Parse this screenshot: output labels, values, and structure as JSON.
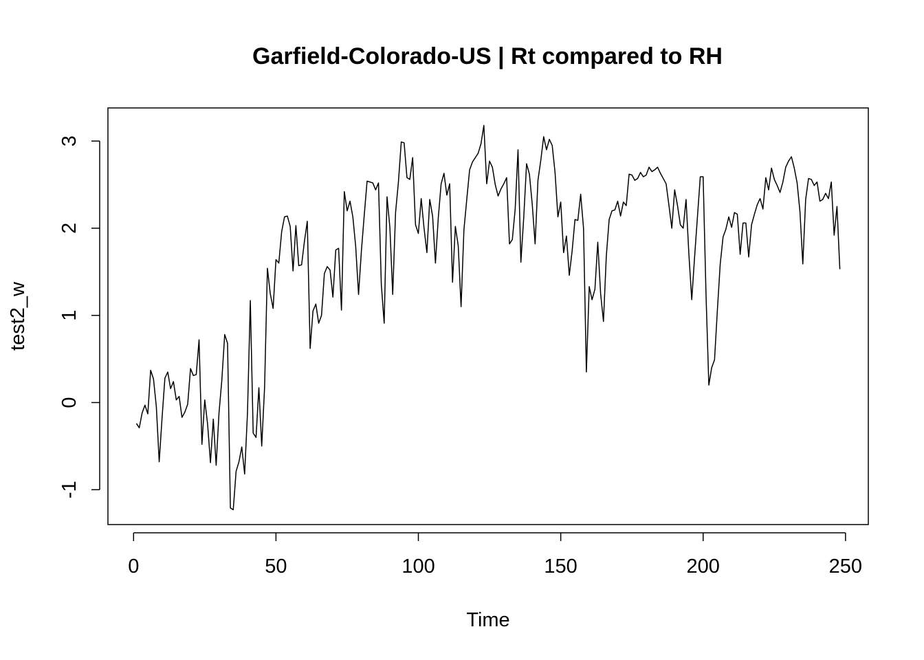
{
  "chart_data": {
    "type": "line",
    "title": "Garfield-Colorado-US | Rt compared to RH",
    "xlabel": "Time",
    "ylabel": "test2_w",
    "xlim": [
      -9,
      258
    ],
    "ylim": [
      -1.4,
      3.38
    ],
    "x_ticks": [
      0,
      50,
      100,
      150,
      200,
      250
    ],
    "x_tick_labels": [
      "0",
      "50",
      "100",
      "150",
      "200",
      "250"
    ],
    "y_ticks": [
      -1,
      0,
      1,
      2,
      3
    ],
    "y_tick_labels": [
      "-1",
      "0",
      "1",
      "2",
      "3"
    ],
    "grid": false,
    "legend": "none",
    "line_color": "#000000",
    "series": [
      {
        "x_start": 1,
        "values": [
          -0.24,
          -0.29,
          -0.12,
          -0.03,
          -0.13,
          0.37,
          0.27,
          -0.05,
          -0.68,
          -0.18,
          0.28,
          0.35,
          0.16,
          0.24,
          0.03,
          0.07,
          -0.17,
          -0.11,
          -0.02,
          0.39,
          0.31,
          0.32,
          0.72,
          -0.48,
          0.03,
          -0.25,
          -0.69,
          -0.19,
          -0.72,
          -0.12,
          0.26,
          0.78,
          0.68,
          -1.21,
          -1.23,
          -0.79,
          -0.68,
          -0.51,
          -0.82,
          -0.12,
          1.17,
          -0.35,
          -0.4,
          0.17,
          -0.5,
          0.17,
          1.54,
          1.25,
          1.08,
          1.64,
          1.6,
          1.96,
          2.13,
          2.14,
          2.02,
          1.51,
          2.03,
          1.57,
          1.58,
          1.85,
          2.08,
          0.62,
          1.05,
          1.13,
          0.91,
          1.0,
          1.48,
          1.56,
          1.52,
          1.21,
          1.75,
          1.77,
          1.06,
          2.42,
          2.2,
          2.31,
          2.13,
          1.79,
          1.24,
          1.74,
          2.15,
          2.54,
          2.53,
          2.52,
          2.44,
          2.52,
          1.35,
          0.91,
          2.36,
          2.01,
          1.24,
          2.18,
          2.53,
          2.99,
          2.98,
          2.58,
          2.56,
          2.81,
          2.04,
          1.94,
          2.34,
          2.0,
          1.72,
          2.33,
          2.14,
          1.6,
          2.12,
          2.51,
          2.63,
          2.38,
          2.51,
          1.38,
          2.02,
          1.8,
          1.1,
          1.98,
          2.33,
          2.67,
          2.76,
          2.81,
          2.86,
          2.97,
          3.18,
          2.51,
          2.77,
          2.7,
          2.5,
          2.37,
          2.45,
          2.51,
          2.58,
          1.82,
          1.87,
          2.22,
          2.9,
          1.61,
          2.12,
          2.74,
          2.62,
          2.27,
          1.82,
          2.55,
          2.78,
          3.05,
          2.9,
          3.02,
          2.95,
          2.64,
          2.13,
          2.3,
          1.72,
          1.91,
          1.46,
          1.74,
          2.1,
          2.09,
          2.39,
          2.0,
          0.35,
          1.33,
          1.18,
          1.3,
          1.84,
          1.25,
          0.93,
          1.68,
          2.1,
          2.2,
          2.21,
          2.31,
          2.14,
          2.3,
          2.26,
          2.62,
          2.61,
          2.55,
          2.57,
          2.64,
          2.59,
          2.61,
          2.7,
          2.65,
          2.67,
          2.7,
          2.63,
          2.57,
          2.51,
          2.26,
          2.0,
          2.44,
          2.26,
          2.04,
          2.0,
          2.33,
          1.7,
          1.18,
          1.67,
          2.13,
          2.59,
          2.59,
          1.25,
          0.2,
          0.4,
          0.49,
          1.06,
          1.59,
          1.9,
          1.99,
          2.13,
          2.01,
          2.18,
          2.16,
          1.7,
          2.06,
          2.06,
          1.67,
          2.04,
          2.16,
          2.27,
          2.34,
          2.22,
          2.58,
          2.44,
          2.69,
          2.56,
          2.49,
          2.41,
          2.53,
          2.7,
          2.77,
          2.82,
          2.69,
          2.52,
          2.19,
          1.59,
          2.33,
          2.57,
          2.56,
          2.49,
          2.53,
          2.31,
          2.33,
          2.4,
          2.34,
          2.53,
          1.92,
          2.25,
          1.53
        ]
      }
    ]
  }
}
